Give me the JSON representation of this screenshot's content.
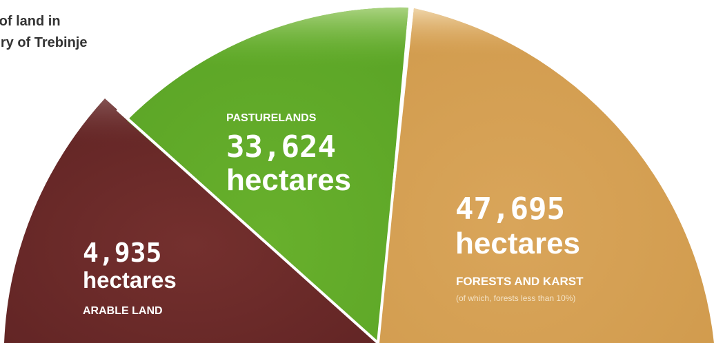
{
  "title_lines": [
    "e of land in",
    "tory of Trebinje"
  ],
  "chart_data": {
    "type": "pie",
    "slices": [
      {
        "label": "ARABLE LAND",
        "value": 4935,
        "value_text": "4,935",
        "unit": "hectares",
        "color": "#6e3030"
      },
      {
        "label": "PASTURELANDS",
        "value": 33624,
        "value_text": "33,624",
        "unit": "hectares",
        "color": "#6ab430"
      },
      {
        "label": "FORESTS AND KARST",
        "value": 47695,
        "value_text": "47,695",
        "unit": "hectares",
        "note": "(of which, forests less than 10%)",
        "color": "#ddaa60"
      }
    ],
    "title": "",
    "legend": "none"
  }
}
